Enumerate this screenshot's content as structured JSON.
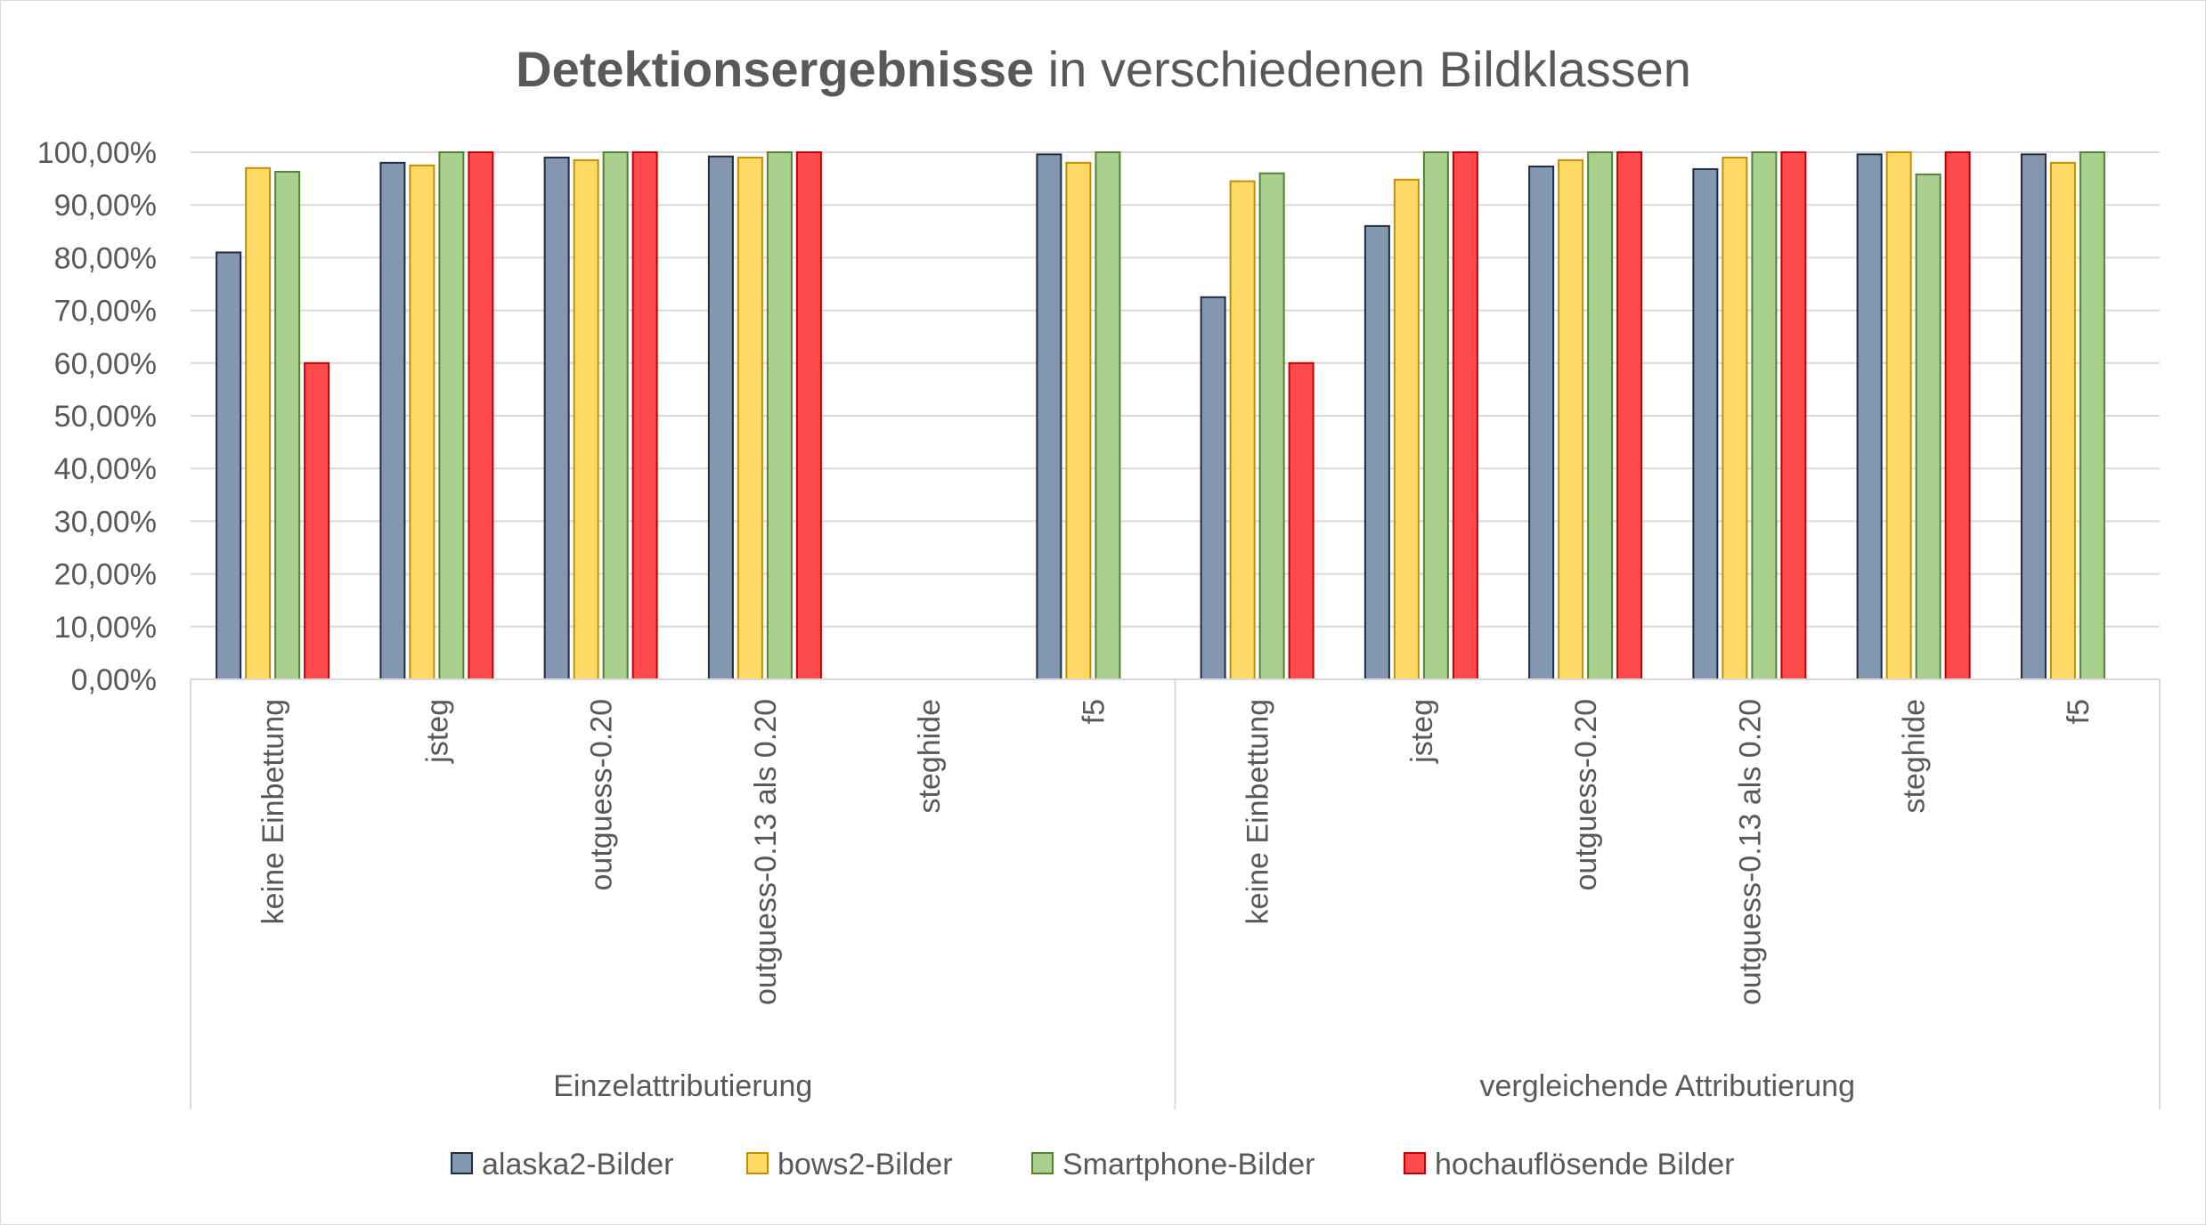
{
  "chart_data": {
    "type": "bar",
    "title_bold": "Detektionsergebnisse",
    "title_rest": " in verschiedenen Bildklassen",
    "ylim": [
      0,
      100
    ],
    "yticks": [
      "0,00%",
      "10,00%",
      "20,00%",
      "30,00%",
      "40,00%",
      "50,00%",
      "60,00%",
      "70,00%",
      "80,00%",
      "90,00%",
      "100,00%"
    ],
    "grid": true,
    "legend_position": "bottom",
    "groups": [
      {
        "label": "Einzelattributierung",
        "categories": [
          "keine Einbettung",
          "jsteg",
          "outguess-0.20",
          "outguess-0.13 als 0.20",
          "steghide",
          "f5"
        ]
      },
      {
        "label": "vergleichende Attributierung",
        "categories": [
          "keine Einbettung",
          "jsteg",
          "outguess-0.20",
          "outguess-0.13 als 0.20",
          "steghide",
          "f5"
        ]
      }
    ],
    "series": [
      {
        "name": "alaska2-Bilder",
        "color": "#8497b0",
        "stroke": "#1f2d3d",
        "values": [
          81,
          98,
          99,
          99.2,
          null,
          99.6,
          72.5,
          86,
          97.3,
          96.8,
          99.6,
          99.6
        ]
      },
      {
        "name": "bows2-Bilder",
        "color": "#ffd966",
        "stroke": "#bf9000",
        "values": [
          97,
          97.5,
          98.5,
          99,
          null,
          98,
          94.5,
          94.8,
          98.5,
          99,
          100,
          98
        ]
      },
      {
        "name": "Smartphone-Bilder",
        "color": "#a9d08e",
        "stroke": "#548235",
        "values": [
          96.3,
          100,
          100,
          100,
          null,
          100,
          96,
          100,
          100,
          100,
          95.8,
          100
        ]
      },
      {
        "name": "hochauflösende Bilder",
        "color": "#ff4b4b",
        "stroke": "#c00000",
        "values": [
          60,
          100,
          100,
          100,
          null,
          null,
          60,
          100,
          100,
          100,
          100,
          null
        ]
      }
    ]
  }
}
